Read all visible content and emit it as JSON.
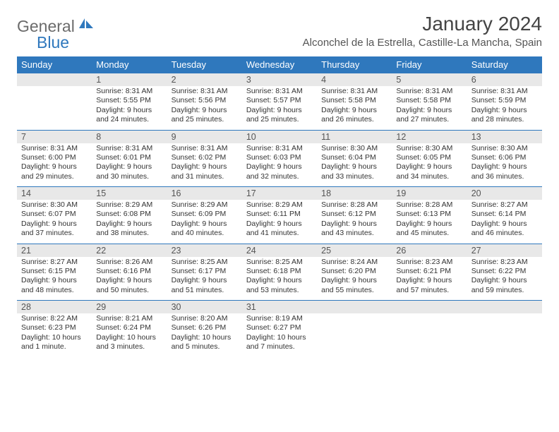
{
  "brand": {
    "general": "General",
    "blue": "Blue"
  },
  "title": "January 2024",
  "location": "Alconchel de la Estrella, Castille-La Mancha, Spain",
  "dow": [
    "Sunday",
    "Monday",
    "Tuesday",
    "Wednesday",
    "Thursday",
    "Friday",
    "Saturday"
  ],
  "colors": {
    "header_bg": "#2f78bd",
    "header_fg": "#ffffff",
    "daynum_bg": "#e8e8e8",
    "rule": "#2f78bd",
    "logo_gray": "#6b6b6b",
    "logo_blue": "#2f78bd"
  },
  "weeks": [
    {
      "nums": [
        "",
        "1",
        "2",
        "3",
        "4",
        "5",
        "6"
      ],
      "cells": [
        "",
        "Sunrise: 8:31 AM\nSunset: 5:55 PM\nDaylight: 9 hours and 24 minutes.",
        "Sunrise: 8:31 AM\nSunset: 5:56 PM\nDaylight: 9 hours and 25 minutes.",
        "Sunrise: 8:31 AM\nSunset: 5:57 PM\nDaylight: 9 hours and 25 minutes.",
        "Sunrise: 8:31 AM\nSunset: 5:58 PM\nDaylight: 9 hours and 26 minutes.",
        "Sunrise: 8:31 AM\nSunset: 5:58 PM\nDaylight: 9 hours and 27 minutes.",
        "Sunrise: 8:31 AM\nSunset: 5:59 PM\nDaylight: 9 hours and 28 minutes."
      ]
    },
    {
      "nums": [
        "7",
        "8",
        "9",
        "10",
        "11",
        "12",
        "13"
      ],
      "cells": [
        "Sunrise: 8:31 AM\nSunset: 6:00 PM\nDaylight: 9 hours and 29 minutes.",
        "Sunrise: 8:31 AM\nSunset: 6:01 PM\nDaylight: 9 hours and 30 minutes.",
        "Sunrise: 8:31 AM\nSunset: 6:02 PM\nDaylight: 9 hours and 31 minutes.",
        "Sunrise: 8:31 AM\nSunset: 6:03 PM\nDaylight: 9 hours and 32 minutes.",
        "Sunrise: 8:30 AM\nSunset: 6:04 PM\nDaylight: 9 hours and 33 minutes.",
        "Sunrise: 8:30 AM\nSunset: 6:05 PM\nDaylight: 9 hours and 34 minutes.",
        "Sunrise: 8:30 AM\nSunset: 6:06 PM\nDaylight: 9 hours and 36 minutes."
      ]
    },
    {
      "nums": [
        "14",
        "15",
        "16",
        "17",
        "18",
        "19",
        "20"
      ],
      "cells": [
        "Sunrise: 8:30 AM\nSunset: 6:07 PM\nDaylight: 9 hours and 37 minutes.",
        "Sunrise: 8:29 AM\nSunset: 6:08 PM\nDaylight: 9 hours and 38 minutes.",
        "Sunrise: 8:29 AM\nSunset: 6:09 PM\nDaylight: 9 hours and 40 minutes.",
        "Sunrise: 8:29 AM\nSunset: 6:11 PM\nDaylight: 9 hours and 41 minutes.",
        "Sunrise: 8:28 AM\nSunset: 6:12 PM\nDaylight: 9 hours and 43 minutes.",
        "Sunrise: 8:28 AM\nSunset: 6:13 PM\nDaylight: 9 hours and 45 minutes.",
        "Sunrise: 8:27 AM\nSunset: 6:14 PM\nDaylight: 9 hours and 46 minutes."
      ]
    },
    {
      "nums": [
        "21",
        "22",
        "23",
        "24",
        "25",
        "26",
        "27"
      ],
      "cells": [
        "Sunrise: 8:27 AM\nSunset: 6:15 PM\nDaylight: 9 hours and 48 minutes.",
        "Sunrise: 8:26 AM\nSunset: 6:16 PM\nDaylight: 9 hours and 50 minutes.",
        "Sunrise: 8:25 AM\nSunset: 6:17 PM\nDaylight: 9 hours and 51 minutes.",
        "Sunrise: 8:25 AM\nSunset: 6:18 PM\nDaylight: 9 hours and 53 minutes.",
        "Sunrise: 8:24 AM\nSunset: 6:20 PM\nDaylight: 9 hours and 55 minutes.",
        "Sunrise: 8:23 AM\nSunset: 6:21 PM\nDaylight: 9 hours and 57 minutes.",
        "Sunrise: 8:23 AM\nSunset: 6:22 PM\nDaylight: 9 hours and 59 minutes."
      ]
    },
    {
      "nums": [
        "28",
        "29",
        "30",
        "31",
        "",
        "",
        ""
      ],
      "cells": [
        "Sunrise: 8:22 AM\nSunset: 6:23 PM\nDaylight: 10 hours and 1 minute.",
        "Sunrise: 8:21 AM\nSunset: 6:24 PM\nDaylight: 10 hours and 3 minutes.",
        "Sunrise: 8:20 AM\nSunset: 6:26 PM\nDaylight: 10 hours and 5 minutes.",
        "Sunrise: 8:19 AM\nSunset: 6:27 PM\nDaylight: 10 hours and 7 minutes.",
        "",
        "",
        ""
      ]
    }
  ]
}
